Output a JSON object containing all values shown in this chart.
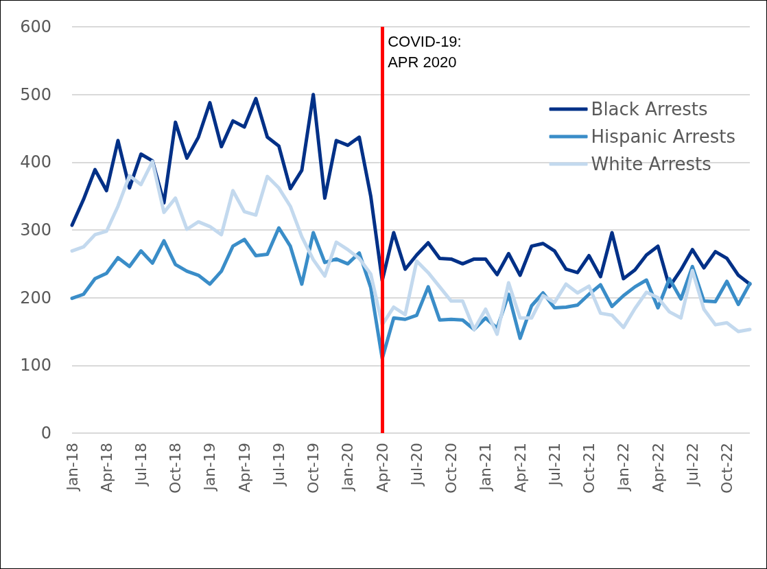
{
  "chart_data": {
    "type": "line",
    "categories": [
      "Jan-18",
      null,
      null,
      "Apr-18",
      null,
      null,
      "Jul-18",
      null,
      null,
      "Oct-18",
      null,
      null,
      "Jan-19",
      null,
      null,
      "Apr-19",
      null,
      null,
      "Jul-19",
      null,
      null,
      "Oct-19",
      null,
      null,
      "Jan-20",
      null,
      null,
      "Apr-20",
      null,
      null,
      "Jul-20",
      null,
      null,
      "Oct-20",
      null,
      null,
      "Jan-21",
      null,
      null,
      "Apr-21",
      null,
      null,
      "Jul-21",
      null,
      null,
      "Oct-21",
      null,
      null,
      "Jan-22",
      null,
      null,
      "Apr-22",
      null,
      null,
      "Jul-22",
      null,
      null,
      "Oct-22",
      null,
      null
    ],
    "series": [
      {
        "name": "Black Arrests",
        "color": "#003087",
        "values": [
          307,
          345,
          389,
          358,
          432,
          362,
          412,
          402,
          340,
          459,
          406,
          437,
          488,
          423,
          461,
          452,
          494,
          437,
          424,
          361,
          388,
          500,
          347,
          432,
          425,
          437,
          350,
          225,
          296,
          242,
          263,
          281,
          258,
          257,
          250,
          257,
          257,
          234,
          265,
          233,
          276,
          280,
          269,
          242,
          237,
          262,
          231,
          296,
          228,
          241,
          263,
          276,
          216,
          241,
          271,
          244,
          268,
          258,
          233,
          220
        ]
      },
      {
        "name": "Hispanic Arrests",
        "color": "#3a8dc8",
        "values": [
          199,
          205,
          228,
          236,
          259,
          246,
          269,
          251,
          284,
          249,
          239,
          233,
          220,
          239,
          276,
          286,
          262,
          264,
          303,
          276,
          220,
          296,
          252,
          257,
          250,
          266,
          215,
          110,
          170,
          168,
          174,
          216,
          167,
          168,
          167,
          153,
          170,
          155,
          205,
          140,
          188,
          207,
          185,
          186,
          189,
          205,
          219,
          187,
          203,
          216,
          226,
          185,
          228,
          198,
          246,
          195,
          194,
          224,
          190,
          221
        ]
      },
      {
        "name": "White Arrests",
        "color": "#c3d9ee",
        "values": [
          269,
          275,
          293,
          298,
          335,
          380,
          367,
          401,
          326,
          347,
          301,
          312,
          305,
          293,
          358,
          327,
          322,
          379,
          362,
          335,
          290,
          256,
          232,
          282,
          271,
          258,
          235,
          160,
          186,
          175,
          254,
          237,
          216,
          195,
          195,
          153,
          183,
          146,
          222,
          170,
          170,
          203,
          193,
          220,
          207,
          217,
          177,
          174,
          156,
          184,
          208,
          200,
          179,
          170,
          240,
          183,
          160,
          163,
          150,
          153
        ]
      }
    ],
    "ylim": [
      0,
      600
    ],
    "yticks": [
      0,
      100,
      200,
      300,
      400,
      500,
      600
    ],
    "grid": "y",
    "legend": "top right",
    "marker": "none",
    "line_style": "solid",
    "ref_lines": [
      {
        "axis": "x",
        "value": "Apr-20",
        "label": "COVID-19:\nAPR 2020",
        "color": "#ff0000"
      }
    ]
  }
}
